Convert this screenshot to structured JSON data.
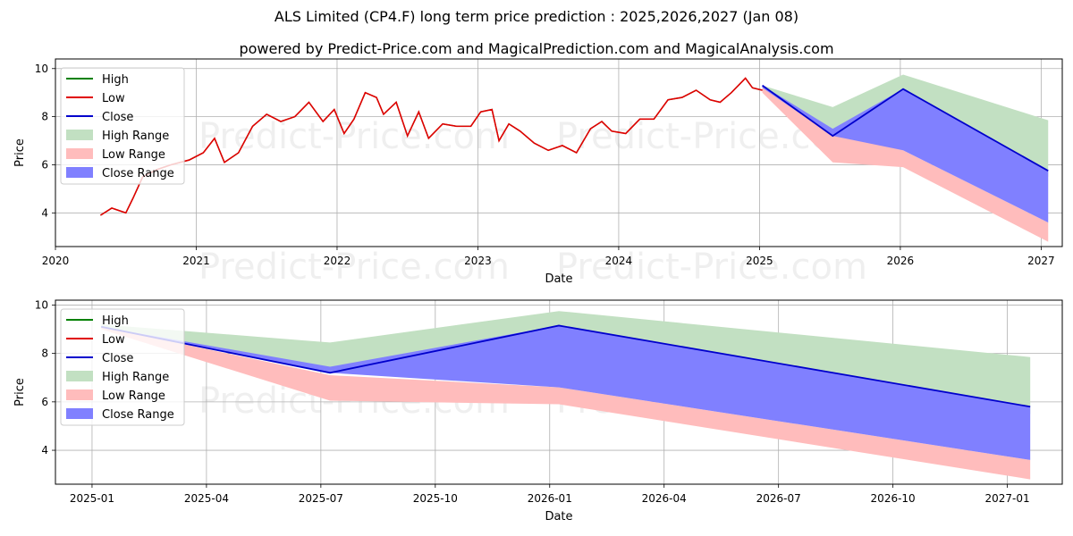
{
  "title": "ALS Limited (CP4.F) long term price prediction : 2025,2026,2027 (Jan 08)",
  "subtitle": "powered by Predict-Price.com and MagicalPrediction.com and MagicalAnalysis.com",
  "watermark": "Predict-Price.com",
  "colors": {
    "high": "#008000",
    "low": "#e00000",
    "close": "#0000cc",
    "high_range": "#c2e0c2",
    "low_range": "#ffbcbc",
    "close_range": "#8080ff",
    "grid": "#b0b0b0"
  },
  "legend": {
    "high": "High",
    "low": "Low",
    "close": "Close",
    "high_range": "High Range",
    "low_range": "Low Range",
    "close_range": "Close Range"
  },
  "chart_data": [
    {
      "type": "line",
      "xlabel": "Date",
      "ylabel": "Price",
      "xlim": [
        2020.0,
        2027.15
      ],
      "ylim": [
        2.6,
        10.4
      ],
      "x_ticks": [
        "2020",
        "2021",
        "2022",
        "2023",
        "2024",
        "2025",
        "2026",
        "2027"
      ],
      "y_ticks": [
        4,
        6,
        8,
        10
      ],
      "grid": true,
      "legend_position": "upper-left",
      "historical_close": {
        "x": [
          2020.32,
          2020.4,
          2020.5,
          2020.55,
          2020.62,
          2020.72,
          2020.82,
          2020.95,
          2021.05,
          2021.13,
          2021.2,
          2021.3,
          2021.4,
          2021.5,
          2021.6,
          2021.7,
          2021.8,
          2021.9,
          2021.98,
          2022.05,
          2022.12,
          2022.2,
          2022.28,
          2022.33,
          2022.42,
          2022.5,
          2022.58,
          2022.65,
          2022.75,
          2022.85,
          2022.95,
          2023.02,
          2023.1,
          2023.15,
          2023.22,
          2023.3,
          2023.4,
          2023.5,
          2023.6,
          2023.7,
          2023.8,
          2023.88,
          2023.95,
          2024.05,
          2024.15,
          2024.25,
          2024.35,
          2024.45,
          2024.55,
          2024.65,
          2024.72,
          2024.8,
          2024.9,
          2024.95,
          2025.02
        ],
        "y": [
          3.9,
          4.2,
          4.0,
          4.6,
          5.5,
          5.8,
          6.0,
          6.2,
          6.5,
          7.1,
          6.1,
          6.5,
          7.6,
          8.1,
          7.8,
          8.0,
          8.6,
          7.8,
          8.3,
          7.3,
          7.9,
          9.0,
          8.8,
          8.1,
          8.6,
          7.2,
          8.2,
          7.1,
          7.7,
          7.6,
          7.6,
          8.2,
          8.3,
          7.0,
          7.7,
          7.4,
          6.9,
          6.6,
          6.8,
          6.5,
          7.5,
          7.8,
          7.4,
          7.3,
          7.9,
          7.9,
          8.7,
          8.8,
          9.1,
          8.7,
          8.6,
          9.0,
          9.6,
          9.2,
          9.1
        ]
      },
      "forecast": {
        "dates": [
          "2025-01-08",
          "2025-07-08",
          "2026-01-08",
          "2027-01-08"
        ],
        "x": [
          2025.02,
          2025.52,
          2026.02,
          2027.05
        ],
        "close": [
          9.3,
          7.2,
          9.15,
          5.75
        ],
        "high_range": {
          "upper": [
            9.3,
            8.4,
            9.75,
            7.85
          ],
          "lower": [
            9.3,
            7.4,
            8.9,
            5.5
          ]
        },
        "low_range": {
          "upper": [
            9.3,
            7.3,
            6.6,
            3.6
          ],
          "lower": [
            9.0,
            6.1,
            5.9,
            2.8
          ]
        },
        "close_range": {
          "upper": [
            9.3,
            7.5,
            9.15,
            5.75
          ],
          "lower": [
            9.2,
            7.2,
            6.6,
            3.6
          ]
        }
      }
    },
    {
      "type": "line",
      "xlabel": "Date",
      "ylabel": "Price",
      "xlim": [
        2024.92,
        2027.12
      ],
      "ylim": [
        2.6,
        10.2
      ],
      "x_ticks": [
        "2025-01",
        "2025-04",
        "2025-07",
        "2025-10",
        "2026-01",
        "2026-04",
        "2026-07",
        "2026-10",
        "2027-01"
      ],
      "y_ticks": [
        4,
        6,
        8,
        10
      ],
      "grid": true,
      "legend_position": "upper-left",
      "forecast": {
        "x": [
          2025.02,
          2025.52,
          2026.02,
          2027.05
        ],
        "close": [
          9.1,
          7.2,
          9.15,
          5.8
        ],
        "high_range": {
          "upper": [
            9.2,
            8.45,
            9.75,
            7.85
          ],
          "lower": [
            9.1,
            7.4,
            8.9,
            5.5
          ]
        },
        "low_range": {
          "upper": [
            9.1,
            7.1,
            6.6,
            3.6
          ],
          "lower": [
            9.0,
            6.05,
            5.9,
            2.8
          ]
        },
        "close_range": {
          "upper": [
            9.1,
            7.45,
            9.15,
            5.8
          ],
          "lower": [
            9.1,
            7.2,
            6.6,
            3.6
          ]
        }
      }
    }
  ]
}
